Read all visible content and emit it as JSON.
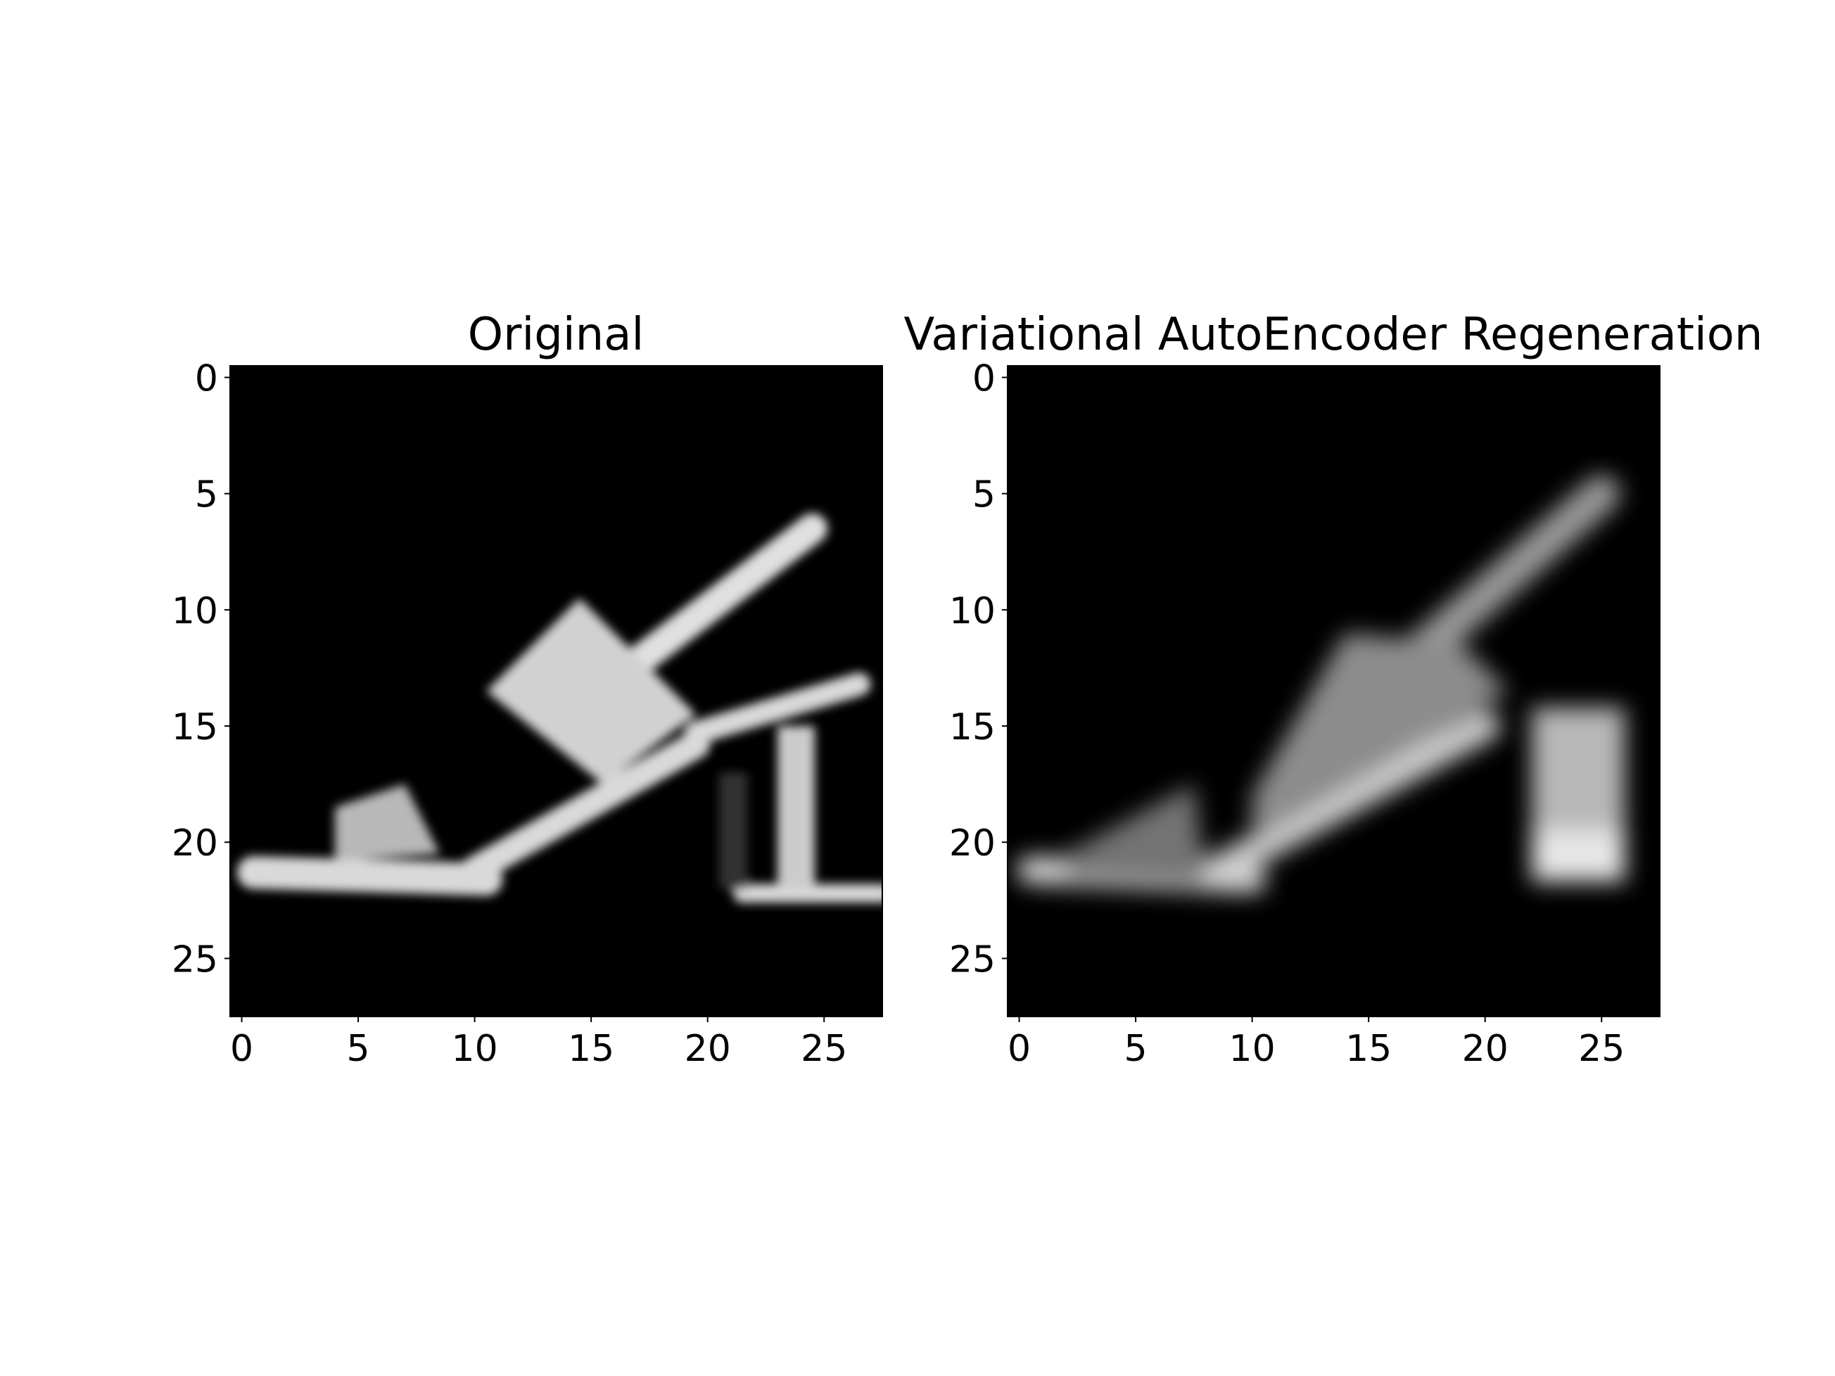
{
  "chart_data": [
    {
      "type": "heatmap",
      "title": "Original",
      "colormap": "gray",
      "background": "#000000",
      "xlim": [
        -0.5,
        27.5
      ],
      "ylim": [
        27.5,
        -0.5
      ],
      "xticks": [
        0,
        5,
        10,
        15,
        20,
        25
      ],
      "yticks": [
        0,
        5,
        10,
        15,
        20,
        25
      ],
      "xlabel": "",
      "ylabel": "",
      "shapes": [
        {
          "kind": "line",
          "from": [
            10,
            21.2
          ],
          "to": [
            19.5,
            15.8
          ],
          "width": 1.2,
          "intensity": 0.85
        },
        {
          "kind": "line",
          "from": [
            0.5,
            21.3
          ],
          "to": [
            10.5,
            21.6
          ],
          "width": 1.4,
          "intensity": 0.85
        },
        {
          "kind": "line",
          "from": [
            16,
            13
          ],
          "to": [
            24.5,
            6.5
          ],
          "width": 1.3,
          "intensity": 0.88
        },
        {
          "kind": "line",
          "from": [
            19.5,
            15.3
          ],
          "to": [
            26.5,
            13.2
          ],
          "width": 1.0,
          "intensity": 0.85
        },
        {
          "kind": "line",
          "from": [
            21.5,
            22.2
          ],
          "to": [
            27.5,
            22.2
          ],
          "width": 0.8,
          "intensity": 0.85
        },
        {
          "kind": "polygon",
          "points": [
            [
              10.5,
              13.5
            ],
            [
              14.5,
              9.5
            ],
            [
              19.5,
              14.5
            ],
            [
              15.5,
              17.5
            ]
          ],
          "intensity": 0.82
        },
        {
          "kind": "polygon",
          "points": [
            [
              4,
              18.5
            ],
            [
              7,
              17.5
            ],
            [
              8.5,
              20.5
            ],
            [
              4,
              20.8
            ]
          ],
          "intensity": 0.72
        },
        {
          "kind": "rect",
          "x": 23,
          "y": 15,
          "w": 1.6,
          "h": 7,
          "intensity": 0.8
        },
        {
          "kind": "rect",
          "x": 20.5,
          "y": 17,
          "w": 1.2,
          "h": 5,
          "intensity": 0.2
        }
      ]
    },
    {
      "type": "heatmap",
      "title": "Variational AutoEncoder Regeneration",
      "colormap": "gray",
      "background": "#000000",
      "xlim": [
        -0.5,
        27.5
      ],
      "ylim": [
        27.5,
        -0.5
      ],
      "xticks": [
        0,
        5,
        10,
        15,
        20,
        25
      ],
      "yticks": [
        0,
        5,
        10,
        15,
        20,
        25
      ],
      "xlabel": "",
      "ylabel": "",
      "shapes": [
        {
          "kind": "line",
          "from": [
            8,
            21.5
          ],
          "to": [
            20,
            15
          ],
          "width": 1.3,
          "intensity": 0.8
        },
        {
          "kind": "line",
          "from": [
            0.5,
            21.2
          ],
          "to": [
            10,
            21.6
          ],
          "width": 1.2,
          "intensity": 0.82
        },
        {
          "kind": "line",
          "from": [
            17,
            12
          ],
          "to": [
            25,
            5
          ],
          "width": 1.6,
          "intensity": 0.6
        },
        {
          "kind": "polygon",
          "points": [
            [
              2,
              20.5
            ],
            [
              7.5,
              17.5
            ],
            [
              8,
              21.8
            ],
            [
              2,
              21.5
            ]
          ],
          "intensity": 0.45
        },
        {
          "kind": "polygon",
          "points": [
            [
              10,
              18
            ],
            [
              14,
              11
            ],
            [
              19,
              11.5
            ],
            [
              21,
              13.5
            ],
            [
              16,
              16.5
            ],
            [
              10,
              20
            ]
          ],
          "intensity": 0.55
        },
        {
          "kind": "rect",
          "x": 22,
          "y": 14.2,
          "w": 4,
          "h": 7.5,
          "intensity": 0.72
        },
        {
          "kind": "rect",
          "x": 22,
          "y": 19.5,
          "w": 4,
          "h": 2.2,
          "intensity": 0.9
        }
      ]
    }
  ]
}
